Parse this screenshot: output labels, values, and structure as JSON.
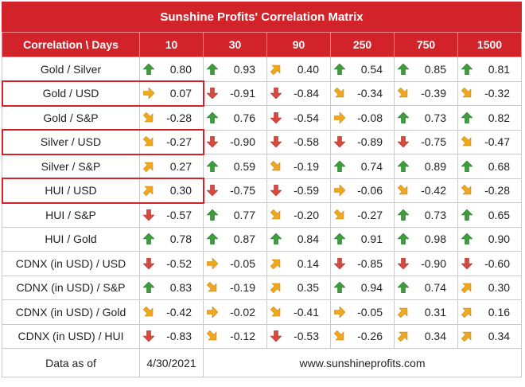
{
  "title": "Sunshine Profits' Correlation Matrix",
  "corner_header": "Correlation \\ Days",
  "columns": [
    "10",
    "30",
    "90",
    "250",
    "750",
    "1500"
  ],
  "rows": [
    {
      "label": "Gold / Silver",
      "cells": [
        {
          "v": "0.80",
          "a": "up"
        },
        {
          "v": "0.93",
          "a": "up"
        },
        {
          "v": "0.40",
          "a": "ne"
        },
        {
          "v": "0.54",
          "a": "up"
        },
        {
          "v": "0.85",
          "a": "up"
        },
        {
          "v": "0.81",
          "a": "up"
        }
      ]
    },
    {
      "label": "Gold / USD",
      "highlighted": true,
      "cells": [
        {
          "v": "0.07",
          "a": "right"
        },
        {
          "v": "-0.91",
          "a": "down"
        },
        {
          "v": "-0.84",
          "a": "down"
        },
        {
          "v": "-0.34",
          "a": "se"
        },
        {
          "v": "-0.39",
          "a": "se"
        },
        {
          "v": "-0.32",
          "a": "se"
        }
      ]
    },
    {
      "label": "Gold / S&P",
      "cells": [
        {
          "v": "-0.28",
          "a": "se"
        },
        {
          "v": "0.76",
          "a": "up"
        },
        {
          "v": "-0.54",
          "a": "down"
        },
        {
          "v": "-0.08",
          "a": "right"
        },
        {
          "v": "0.73",
          "a": "up"
        },
        {
          "v": "0.82",
          "a": "up"
        }
      ]
    },
    {
      "label": "Silver / USD",
      "highlighted": true,
      "cells": [
        {
          "v": "-0.27",
          "a": "se"
        },
        {
          "v": "-0.90",
          "a": "down"
        },
        {
          "v": "-0.58",
          "a": "down"
        },
        {
          "v": "-0.89",
          "a": "down"
        },
        {
          "v": "-0.75",
          "a": "down"
        },
        {
          "v": "-0.47",
          "a": "se"
        }
      ]
    },
    {
      "label": "Silver / S&P",
      "cells": [
        {
          "v": "0.27",
          "a": "ne"
        },
        {
          "v": "0.59",
          "a": "up"
        },
        {
          "v": "-0.19",
          "a": "se"
        },
        {
          "v": "0.74",
          "a": "up"
        },
        {
          "v": "0.89",
          "a": "up"
        },
        {
          "v": "0.68",
          "a": "up"
        }
      ]
    },
    {
      "label": "HUI / USD",
      "highlighted": true,
      "cells": [
        {
          "v": "0.30",
          "a": "ne"
        },
        {
          "v": "-0.75",
          "a": "down"
        },
        {
          "v": "-0.59",
          "a": "down"
        },
        {
          "v": "-0.06",
          "a": "right"
        },
        {
          "v": "-0.42",
          "a": "se"
        },
        {
          "v": "-0.28",
          "a": "se"
        }
      ]
    },
    {
      "label": "HUI / S&P",
      "cells": [
        {
          "v": "-0.57",
          "a": "down"
        },
        {
          "v": "0.77",
          "a": "up"
        },
        {
          "v": "-0.20",
          "a": "se"
        },
        {
          "v": "-0.27",
          "a": "se"
        },
        {
          "v": "0.73",
          "a": "up"
        },
        {
          "v": "0.65",
          "a": "up"
        }
      ]
    },
    {
      "label": "HUI / Gold",
      "cells": [
        {
          "v": "0.78",
          "a": "up"
        },
        {
          "v": "0.87",
          "a": "up"
        },
        {
          "v": "0.84",
          "a": "up"
        },
        {
          "v": "0.91",
          "a": "up"
        },
        {
          "v": "0.98",
          "a": "up"
        },
        {
          "v": "0.90",
          "a": "up"
        }
      ]
    },
    {
      "label": "CDNX (in USD) / USD",
      "cells": [
        {
          "v": "-0.52",
          "a": "down"
        },
        {
          "v": "-0.05",
          "a": "right"
        },
        {
          "v": "0.14",
          "a": "ne"
        },
        {
          "v": "-0.85",
          "a": "down"
        },
        {
          "v": "-0.90",
          "a": "down"
        },
        {
          "v": "-0.60",
          "a": "down"
        }
      ]
    },
    {
      "label": "CDNX (in USD) / S&P",
      "cells": [
        {
          "v": "0.83",
          "a": "up"
        },
        {
          "v": "-0.19",
          "a": "se"
        },
        {
          "v": "0.35",
          "a": "ne"
        },
        {
          "v": "0.94",
          "a": "up"
        },
        {
          "v": "0.74",
          "a": "up"
        },
        {
          "v": "0.30",
          "a": "ne"
        }
      ]
    },
    {
      "label": "CDNX (in USD) / Gold",
      "cells": [
        {
          "v": "-0.42",
          "a": "se"
        },
        {
          "v": "-0.02",
          "a": "right"
        },
        {
          "v": "-0.41",
          "a": "se"
        },
        {
          "v": "-0.05",
          "a": "right"
        },
        {
          "v": "0.31",
          "a": "ne"
        },
        {
          "v": "0.16",
          "a": "ne"
        }
      ]
    },
    {
      "label": "CDNX (in USD) / HUI",
      "cells": [
        {
          "v": "-0.83",
          "a": "down"
        },
        {
          "v": "-0.12",
          "a": "se"
        },
        {
          "v": "-0.53",
          "a": "down"
        },
        {
          "v": "-0.26",
          "a": "se"
        },
        {
          "v": "0.34",
          "a": "ne"
        },
        {
          "v": "0.34",
          "a": "ne"
        }
      ]
    }
  ],
  "footer": {
    "label": "Data as of",
    "date": "4/30/2021",
    "website": "www.sunshineprofits.com"
  },
  "arrow_icons": {
    "up": "arrow-up-green-icon",
    "down": "arrow-down-red-icon",
    "ne": "arrow-up-right-orange-icon",
    "se": "arrow-down-right-orange-icon",
    "right": "arrow-right-orange-icon"
  },
  "colors": {
    "header_bg": "#d2232a",
    "header_text": "#ffffff",
    "arrow_up": "#3e9b3e",
    "arrow_down": "#d84a3f",
    "arrow_side": "#f2a81d",
    "highlight_border": "#d2232a"
  }
}
